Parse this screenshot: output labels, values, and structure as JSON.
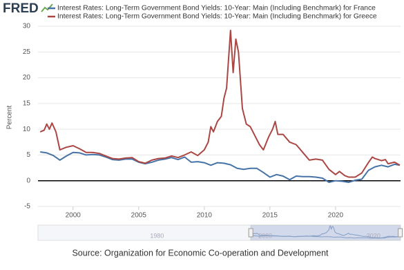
{
  "logo": "FRED",
  "chart_data": {
    "type": "line",
    "y_label": "Percent",
    "source": "Source: Organization for Economic Co-operation and Development",
    "xlim": [
      1997.33,
      2024.95
    ],
    "xticks": [
      2000,
      2005,
      2010,
      2015,
      2020
    ],
    "ylim": [
      -5,
      30
    ],
    "yticks": [
      -5,
      0,
      5,
      10,
      15,
      20,
      25,
      30
    ],
    "grid": true,
    "series": [
      {
        "name": "Interest Rates: Long-Term Government Bond Yields: 10-Year: Main (Including Benchmark) for France",
        "color": "#4572a7",
        "x": [
          1997.5,
          1998,
          1998.5,
          1999,
          1999.5,
          2000,
          2000.5,
          2001,
          2001.5,
          2002,
          2002.5,
          2003,
          2003.5,
          2004,
          2004.5,
          2005,
          2005.5,
          2006,
          2006.5,
          2007,
          2007.5,
          2008,
          2008.5,
          2009,
          2009.5,
          2010,
          2010.5,
          2011,
          2011.5,
          2012,
          2012.5,
          2013,
          2013.5,
          2014,
          2014.5,
          2015,
          2015.5,
          2016,
          2016.5,
          2017,
          2017.5,
          2018,
          2018.5,
          2019,
          2019.5,
          2020,
          2020.5,
          2021,
          2021.5,
          2022,
          2022.5,
          2023,
          2023.5,
          2024,
          2024.5,
          2024.9
        ],
        "values": [
          5.6,
          5.4,
          4.9,
          4.0,
          4.8,
          5.5,
          5.4,
          5.0,
          5.1,
          5.0,
          4.6,
          4.1,
          4.0,
          4.2,
          4.2,
          3.6,
          3.3,
          3.6,
          4.0,
          4.2,
          4.5,
          4.1,
          4.6,
          3.6,
          3.7,
          3.5,
          3.0,
          3.5,
          3.4,
          3.1,
          2.4,
          2.2,
          2.4,
          2.4,
          1.6,
          0.7,
          1.2,
          0.9,
          0.2,
          0.9,
          0.8,
          0.8,
          0.7,
          0.5,
          -0.3,
          0.0,
          -0.1,
          -0.3,
          0.1,
          0.3,
          2.0,
          2.7,
          3.0,
          2.7,
          3.2,
          3.0
        ]
      },
      {
        "name": "Interest Rates: Long-Term Government Bond Yields: 10-Year: Main (Including Benchmark) for Greece",
        "color": "#aa4643",
        "x": [
          1997.5,
          1997.8,
          1998.0,
          1998.2,
          1998.4,
          1998.7,
          1999,
          1999.5,
          2000,
          2000.5,
          2001,
          2001.5,
          2002,
          2002.5,
          2003,
          2003.5,
          2004,
          2004.5,
          2005,
          2005.5,
          2006,
          2006.5,
          2007,
          2007.5,
          2008,
          2008.5,
          2009,
          2009.5,
          2010,
          2010.3,
          2010.5,
          2010.7,
          2011,
          2011.3,
          2011.5,
          2011.7,
          2012.0,
          2012.2,
          2012.4,
          2012.6,
          2012.9,
          2013.2,
          2013.5,
          2013.9,
          2014.2,
          2014.5,
          2014.9,
          2015.2,
          2015.4,
          2015.6,
          2016,
          2016.5,
          2017,
          2017.5,
          2018,
          2018.5,
          2019,
          2019.5,
          2020,
          2020.3,
          2020.7,
          2021,
          2021.5,
          2022,
          2022.5,
          2022.8,
          2023,
          2023.5,
          2023.8,
          2024,
          2024.5,
          2024.9
        ],
        "values": [
          9.5,
          9.8,
          11.0,
          10.0,
          11.2,
          9.5,
          6.0,
          6.5,
          6.8,
          6.2,
          5.5,
          5.5,
          5.3,
          4.8,
          4.3,
          4.2,
          4.4,
          4.5,
          3.7,
          3.4,
          4.0,
          4.3,
          4.4,
          4.8,
          4.5,
          5.0,
          5.6,
          4.9,
          6.0,
          7.5,
          10.5,
          9.5,
          11.5,
          12.5,
          16.0,
          18.0,
          29.2,
          21.0,
          27.5,
          25.0,
          14.0,
          11.0,
          10.5,
          8.5,
          7.0,
          6.0,
          8.5,
          10.0,
          11.5,
          9.0,
          9.0,
          7.5,
          7.0,
          5.5,
          4.0,
          4.2,
          4.0,
          2.2,
          1.2,
          1.8,
          1.0,
          0.7,
          0.7,
          1.5,
          3.5,
          4.6,
          4.3,
          3.9,
          4.1,
          3.3,
          3.6,
          3.0
        ]
      }
    ],
    "navigator": {
      "xlim": [
        1958,
        2025
      ],
      "xticks": [
        1980,
        2000,
        2020
      ]
    }
  }
}
